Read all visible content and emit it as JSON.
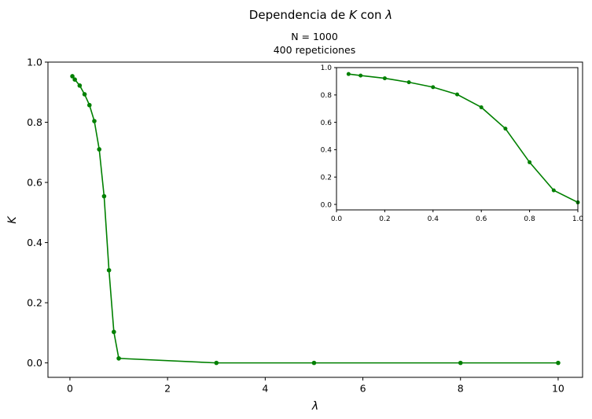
{
  "figure": {
    "suptitle_main": "Dependencia de ",
    "suptitle_k": "K",
    "suptitle_mid": " con ",
    "suptitle_lambda": "λ",
    "subtitle_n": "N = 1000",
    "subtitle_reps": "400 repeticiones"
  },
  "colors": {
    "series": "#008000",
    "axes": "#000000",
    "background": "#ffffff"
  },
  "chart_data": [
    {
      "type": "line",
      "xlabel": "λ",
      "ylabel": "K",
      "xlim": [
        -0.45,
        10.5
      ],
      "ylim": [
        -0.048,
        1.0
      ],
      "xticks": [
        0,
        2,
        4,
        6,
        8,
        10
      ],
      "xtick_labels": [
        "0",
        "2",
        "4",
        "6",
        "8",
        "10"
      ],
      "yticks": [
        0.0,
        0.2,
        0.4,
        0.6,
        0.8,
        1.0
      ],
      "ytick_labels": [
        "0.0",
        "0.2",
        "0.4",
        "0.6",
        "0.8",
        "1.0"
      ],
      "grid": false,
      "series": [
        {
          "x": [
            0.05,
            0.1,
            0.2,
            0.3,
            0.4,
            0.5,
            0.6,
            0.7,
            0.8,
            0.9,
            1.0,
            3,
            5,
            8,
            10
          ],
          "y": [
            0.953,
            0.942,
            0.922,
            0.893,
            0.857,
            0.804,
            0.71,
            0.554,
            0.308,
            0.103,
            0.015,
            0.0,
            0.0,
            0.0,
            0.0
          ]
        }
      ]
    },
    {
      "type": "line",
      "role": "inset",
      "xlim": [
        0.0,
        1.0
      ],
      "ylim": [
        -0.04,
        1.0
      ],
      "xticks": [
        0.0,
        0.2,
        0.4,
        0.6,
        0.8,
        1.0
      ],
      "xtick_labels": [
        "0.0",
        "0.2",
        "0.4",
        "0.6",
        "0.8",
        "1.0"
      ],
      "yticks": [
        0.0,
        0.2,
        0.4,
        0.6,
        0.8,
        1.0
      ],
      "ytick_labels": [
        "0.0",
        "0.2",
        "0.4",
        "0.6",
        "0.8",
        "1.0"
      ],
      "grid": false,
      "series": [
        {
          "x": [
            0.05,
            0.1,
            0.2,
            0.3,
            0.4,
            0.5,
            0.6,
            0.7,
            0.8,
            0.9,
            1.0
          ],
          "y": [
            0.953,
            0.942,
            0.922,
            0.893,
            0.857,
            0.804,
            0.71,
            0.554,
            0.308,
            0.103,
            0.015
          ]
        }
      ]
    }
  ]
}
